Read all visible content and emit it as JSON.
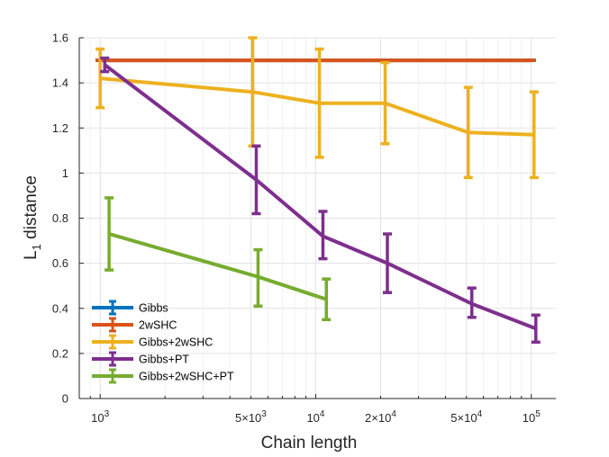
{
  "chart_data": {
    "type": "line",
    "xlabel": "Chain length",
    "ylabel_main": "L",
    "ylabel_sub": "1",
    "ylabel_rest": " distance",
    "x_scale": "log",
    "xlim": [
      800,
      130000
    ],
    "ylim": [
      0,
      1.6
    ],
    "grid": true,
    "legend_position": "bottom-left",
    "yticks": [
      {
        "value": 0,
        "label": "0"
      },
      {
        "value": 0.2,
        "label": "0.2"
      },
      {
        "value": 0.4,
        "label": "0.4"
      },
      {
        "value": 0.6,
        "label": "0.6"
      },
      {
        "value": 0.8,
        "label": "0.8"
      },
      {
        "value": 1,
        "label": "1"
      },
      {
        "value": 1.2,
        "label": "1.2"
      },
      {
        "value": 1.4,
        "label": "1.4"
      },
      {
        "value": 1.6,
        "label": "1.6"
      }
    ],
    "xticks": [
      {
        "value": 1000,
        "base": "10",
        "exp": "3"
      },
      {
        "value": 5000,
        "base": "5×10",
        "exp": "3"
      },
      {
        "value": 10000,
        "base": "10",
        "exp": "4"
      },
      {
        "value": 20000,
        "base": "2×10",
        "exp": "4"
      },
      {
        "value": 50000,
        "base": "5×10",
        "exp": "4"
      },
      {
        "value": 100000,
        "base": "10",
        "exp": "5"
      }
    ],
    "series": [
      {
        "name": "Gibbs",
        "color": "#0072BD",
        "x": [
          1000,
          100000
        ],
        "y": [
          1.5,
          1.5
        ],
        "err_low": [
          1.5,
          1.5
        ],
        "err_high": [
          1.5,
          1.5
        ]
      },
      {
        "name": "2wSHC",
        "color": "#D95319",
        "x": [
          1000,
          100000
        ],
        "y": [
          1.5,
          1.5
        ],
        "err_low": [
          1.5,
          1.5
        ],
        "err_high": [
          1.5,
          1.5
        ]
      },
      {
        "name": "Gibbs+2wSHC",
        "color": "#EDB120",
        "x": [
          1000,
          5100,
          10400,
          21000,
          51000,
          103000
        ],
        "y": [
          1.42,
          1.36,
          1.31,
          1.31,
          1.18,
          1.17
        ],
        "err_low": [
          1.29,
          1.12,
          1.07,
          1.13,
          0.98,
          0.98
        ],
        "err_high": [
          1.55,
          1.6,
          1.55,
          1.49,
          1.38,
          1.36
        ]
      },
      {
        "name": "Gibbs+PT",
        "color": "#7E2F8E",
        "x": [
          1050,
          5300,
          10800,
          21500,
          53000,
          105000
        ],
        "y": [
          1.48,
          0.97,
          0.72,
          0.6,
          0.42,
          0.31
        ],
        "err_low": [
          1.45,
          0.82,
          0.62,
          0.47,
          0.36,
          0.25
        ],
        "err_high": [
          1.51,
          1.12,
          0.83,
          0.73,
          0.49,
          0.37
        ]
      },
      {
        "name": "Gibbs+2wSHC+PT",
        "color": "#77AC30",
        "x": [
          1100,
          5400,
          11200
        ],
        "y": [
          0.73,
          0.54,
          0.44
        ],
        "err_low": [
          0.57,
          0.41,
          0.35
        ],
        "err_high": [
          0.89,
          0.66,
          0.53
        ]
      }
    ]
  }
}
